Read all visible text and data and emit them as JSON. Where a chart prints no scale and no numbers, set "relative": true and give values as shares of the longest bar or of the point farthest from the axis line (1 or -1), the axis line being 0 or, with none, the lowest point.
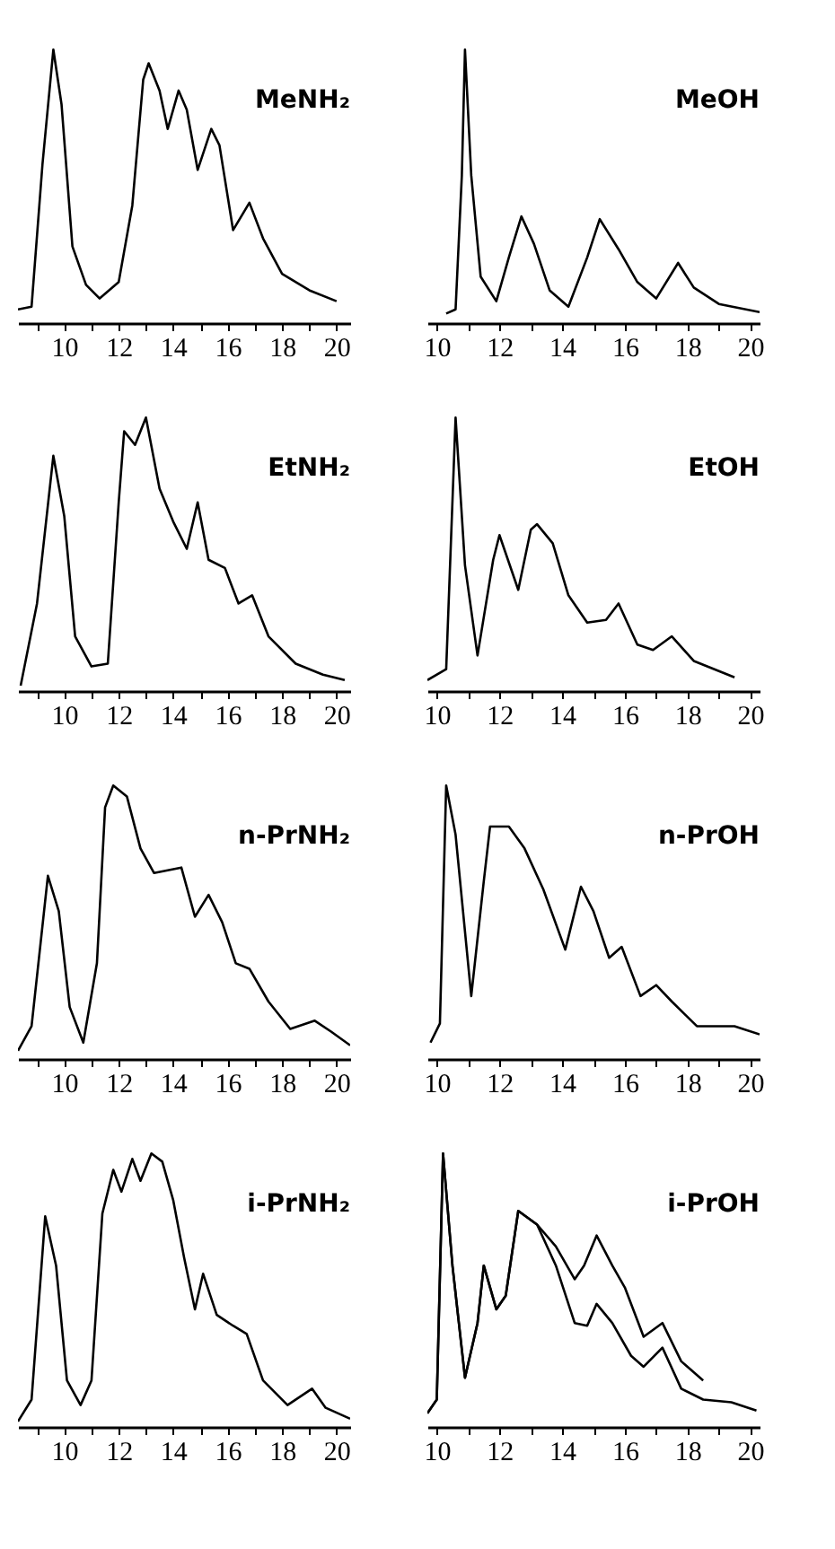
{
  "chart_data": [
    {
      "type": "line",
      "title": "MeNH₂",
      "relative": true,
      "xlim": [
        8.3,
        20.5
      ],
      "xticks": [
        {
          "value": 9,
          "label": null
        },
        10,
        {
          "value": 11,
          "label": null
        },
        12,
        {
          "value": 13,
          "label": null
        },
        14,
        {
          "value": 15,
          "label": null
        },
        16,
        {
          "value": 17,
          "label": null
        },
        18,
        {
          "value": 19,
          "label": null
        },
        20
      ],
      "grid": false,
      "x": [
        8.3,
        8.8,
        9.2,
        9.6,
        9.9,
        10.3,
        10.8,
        11.3,
        12,
        12.5,
        12.9,
        13.1,
        13.5,
        13.8,
        14.2,
        14.5,
        14.9,
        15.4,
        15.7,
        16.2,
        16.8,
        17.3,
        18,
        19,
        20
      ],
      "series": [
        {
          "color": "#000000",
          "values": [
            0.05,
            0.06,
            0.58,
            1.0,
            0.8,
            0.28,
            0.14,
            0.09,
            0.15,
            0.43,
            0.89,
            0.95,
            0.85,
            0.71,
            0.85,
            0.78,
            0.56,
            0.71,
            0.65,
            0.34,
            0.44,
            0.31,
            0.18,
            0.12,
            0.08
          ]
        }
      ]
    },
    {
      "type": "line",
      "title": "MeOH",
      "relative": true,
      "xlim": [
        9.7,
        20.3
      ],
      "xticks": [
        10,
        {
          "value": 11,
          "label": null
        },
        12,
        {
          "value": 13,
          "label": null
        },
        14,
        {
          "value": 15,
          "label": null
        },
        16,
        {
          "value": 17,
          "label": null
        },
        18,
        {
          "value": 19,
          "label": null
        },
        20
      ],
      "grid": false,
      "x": [
        10.3,
        10.6,
        10.8,
        10.9,
        11.1,
        11.4,
        11.9,
        12.3,
        12.7,
        13.1,
        13.6,
        14.2,
        14.8,
        15.2,
        15.8,
        16.4,
        17.0,
        17.7,
        18.2,
        19,
        20.3
      ],
      "series": [
        {
          "color": "#000000",
          "values": [
            0.035,
            0.05,
            0.54,
            1.0,
            0.54,
            0.17,
            0.08,
            0.24,
            0.39,
            0.29,
            0.12,
            0.06,
            0.24,
            0.38,
            0.27,
            0.15,
            0.09,
            0.22,
            0.13,
            0.07,
            0.04
          ]
        }
      ]
    },
    {
      "type": "line",
      "title": "EtNH₂",
      "relative": true,
      "xlim": [
        8.3,
        20.5
      ],
      "xticks": [
        {
          "value": 9,
          "label": null
        },
        10,
        {
          "value": 11,
          "label": null
        },
        12,
        {
          "value": 13,
          "label": null
        },
        14,
        {
          "value": 15,
          "label": null
        },
        16,
        {
          "value": 17,
          "label": null
        },
        18,
        {
          "value": 19,
          "label": null
        },
        20
      ],
      "grid": false,
      "x": [
        8.4,
        9.0,
        9.6,
        10.0,
        10.4,
        11.0,
        11.6,
        12.0,
        12.2,
        12.6,
        13.0,
        13.5,
        14.0,
        14.5,
        14.9,
        15.3,
        15.9,
        16.4,
        16.9,
        17.5,
        18.5,
        19.5,
        20.3
      ],
      "series": [
        {
          "color": "#000000",
          "values": [
            0.02,
            0.32,
            0.86,
            0.64,
            0.2,
            0.09,
            0.1,
            0.69,
            0.95,
            0.9,
            1.0,
            0.74,
            0.62,
            0.52,
            0.69,
            0.48,
            0.45,
            0.32,
            0.35,
            0.2,
            0.1,
            0.06,
            0.04
          ]
        }
      ]
    },
    {
      "type": "line",
      "title": "EtOH",
      "relative": true,
      "xlim": [
        9.7,
        20.3
      ],
      "xticks": [
        10,
        {
          "value": 11,
          "label": null
        },
        12,
        {
          "value": 13,
          "label": null
        },
        14,
        {
          "value": 15,
          "label": null
        },
        16,
        {
          "value": 17,
          "label": null
        },
        18,
        {
          "value": 19,
          "label": null
        },
        20
      ],
      "grid": false,
      "x": [
        9.7,
        10.3,
        10.6,
        10.9,
        11.3,
        11.8,
        12.0,
        12.6,
        13.0,
        13.2,
        13.7,
        14.2,
        14.8,
        15.4,
        15.8,
        16.4,
        16.9,
        17.5,
        18.2,
        19.5
      ],
      "series": [
        {
          "color": "#000000",
          "values": [
            0.04,
            0.08,
            1.0,
            0.46,
            0.13,
            0.48,
            0.57,
            0.37,
            0.59,
            0.61,
            0.54,
            0.35,
            0.25,
            0.26,
            0.32,
            0.17,
            0.15,
            0.2,
            0.11,
            0.05
          ]
        }
      ]
    },
    {
      "type": "line",
      "title": "n-PrNH₂",
      "relative": true,
      "xlim": [
        8.3,
        20.5
      ],
      "xticks": [
        {
          "value": 9,
          "label": null
        },
        10,
        {
          "value": 11,
          "label": null
        },
        12,
        {
          "value": 13,
          "label": null
        },
        14,
        {
          "value": 15,
          "label": null
        },
        16,
        {
          "value": 17,
          "label": null
        },
        18,
        {
          "value": 19,
          "label": null
        },
        20
      ],
      "grid": false,
      "x": [
        8.3,
        8.8,
        9.4,
        9.8,
        10.2,
        10.7,
        11.2,
        11.5,
        11.8,
        12.3,
        12.8,
        13.3,
        13.8,
        14.3,
        14.8,
        15.3,
        15.8,
        16.3,
        16.8,
        17.5,
        18.3,
        19.2,
        19.8,
        20.5
      ],
      "series": [
        {
          "color": "#000000",
          "values": [
            0.03,
            0.12,
            0.67,
            0.54,
            0.19,
            0.06,
            0.35,
            0.92,
            1.0,
            0.96,
            0.77,
            0.68,
            0.69,
            0.7,
            0.52,
            0.6,
            0.5,
            0.35,
            0.33,
            0.21,
            0.11,
            0.14,
            0.1,
            0.05
          ]
        }
      ]
    },
    {
      "type": "line",
      "title": "n-PrOH",
      "relative": true,
      "xlim": [
        9.7,
        20.3
      ],
      "xticks": [
        10,
        {
          "value": 11,
          "label": null
        },
        12,
        {
          "value": 13,
          "label": null
        },
        14,
        {
          "value": 15,
          "label": null
        },
        16,
        {
          "value": 17,
          "label": null
        },
        18,
        {
          "value": 19,
          "label": null
        },
        20
      ],
      "grid": false,
      "x": [
        9.8,
        10.1,
        10.3,
        10.6,
        11.1,
        11.5,
        11.7,
        12.3,
        12.8,
        13.4,
        14.1,
        14.6,
        15.0,
        15.5,
        15.9,
        16.5,
        17.0,
        17.5,
        18.3,
        19.5,
        20.3
      ],
      "series": [
        {
          "color": "#000000",
          "values": [
            0.06,
            0.13,
            1.0,
            0.82,
            0.23,
            0.65,
            0.85,
            0.85,
            0.77,
            0.62,
            0.4,
            0.63,
            0.54,
            0.37,
            0.41,
            0.23,
            0.27,
            0.21,
            0.12,
            0.12,
            0.09
          ]
        }
      ]
    },
    {
      "type": "line",
      "title": "i-PrNH₂",
      "relative": true,
      "xlim": [
        8.3,
        20.5
      ],
      "xticks": [
        {
          "value": 9,
          "label": null
        },
        10,
        {
          "value": 11,
          "label": null
        },
        12,
        {
          "value": 13,
          "label": null
        },
        14,
        {
          "value": 15,
          "label": null
        },
        16,
        {
          "value": 17,
          "label": null
        },
        18,
        {
          "value": 19,
          "label": null
        },
        20
      ],
      "grid": false,
      "x": [
        8.3,
        8.8,
        9.3,
        9.7,
        10.1,
        10.6,
        11.0,
        11.4,
        11.8,
        12.1,
        12.5,
        12.8,
        13.2,
        13.6,
        14.0,
        14.4,
        14.8,
        15.1,
        15.6,
        16.2,
        16.7,
        17.3,
        18.2,
        19.1,
        19.6,
        20.5
      ],
      "series": [
        {
          "color": "#000000",
          "values": [
            0.02,
            0.1,
            0.77,
            0.59,
            0.17,
            0.08,
            0.17,
            0.78,
            0.94,
            0.86,
            0.98,
            0.9,
            1.0,
            0.97,
            0.83,
            0.62,
            0.43,
            0.56,
            0.41,
            0.37,
            0.34,
            0.17,
            0.08,
            0.14,
            0.07,
            0.03
          ]
        }
      ]
    },
    {
      "type": "line",
      "title": "i-PrOH",
      "relative": true,
      "xlim": [
        9.7,
        20.3
      ],
      "xticks": [
        10,
        {
          "value": 11,
          "label": null
        },
        12,
        {
          "value": 13,
          "label": null
        },
        14,
        {
          "value": 15,
          "label": null
        },
        16,
        {
          "value": 17,
          "label": null
        },
        18,
        {
          "value": 19,
          "label": null
        },
        20
      ],
      "grid": false,
      "series": [
        {
          "color": "#000000",
          "x": [
            9.7,
            10.0,
            10.2,
            10.5,
            10.9,
            11.3,
            11.5,
            11.9,
            12.2,
            12.6,
            13.2,
            13.8,
            14.4,
            14.7,
            15.1,
            15.6,
            16.0,
            16.6,
            17.2,
            17.8,
            18.5
          ],
          "values": [
            0.05,
            0.1,
            1.0,
            0.59,
            0.18,
            0.38,
            0.59,
            0.43,
            0.48,
            0.79,
            0.74,
            0.66,
            0.54,
            0.59,
            0.7,
            0.59,
            0.51,
            0.33,
            0.38,
            0.24,
            0.17
          ]
        },
        {
          "color": "#000000",
          "x": [
            9.7,
            10.0,
            10.2,
            10.5,
            10.9,
            11.3,
            11.5,
            11.9,
            12.2,
            12.6,
            13.2,
            13.8,
            14.4,
            14.8,
            15.1,
            15.6,
            16.2,
            16.6,
            17.2,
            17.8,
            18.5,
            19.4,
            20.2
          ],
          "values": [
            0.05,
            0.1,
            1.0,
            0.59,
            0.18,
            0.38,
            0.59,
            0.43,
            0.48,
            0.79,
            0.74,
            0.59,
            0.38,
            0.37,
            0.45,
            0.38,
            0.26,
            0.22,
            0.29,
            0.14,
            0.1,
            0.09,
            0.06
          ]
        }
      ]
    }
  ]
}
